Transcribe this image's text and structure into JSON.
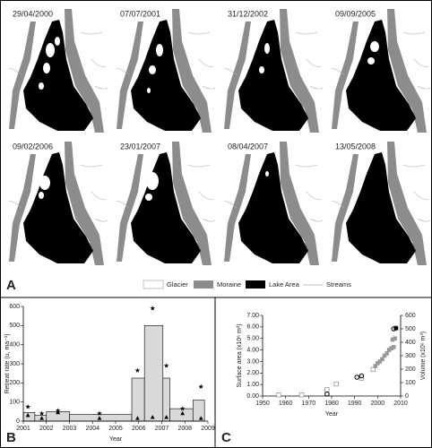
{
  "maps": {
    "dates": [
      "29/04/2000",
      "07/07/2001",
      "31/12/2002",
      "09/09/2005",
      "09/02/2006",
      "23/01/2007",
      "08/04/2007",
      "13/05/2008"
    ]
  },
  "legend": [
    "Glacier",
    "Moraine",
    "Lake Area",
    "Streams"
  ],
  "panel_labels": [
    "A",
    "B",
    "C"
  ],
  "chart_data": [
    {
      "type": "histogram",
      "xlabel": "Year",
      "ylabel": "Retreat rate (u, ma⁻¹)",
      "bins": [
        2001.0,
        2001.5,
        2002.0,
        2003.0,
        2005.7,
        2006.25,
        2007.05,
        2007.35,
        2008.35,
        2008.85
      ],
      "values": [
        45,
        30,
        50,
        35,
        225,
        500,
        225,
        65,
        110
      ],
      "color": "#d9d9d9",
      "series": [
        {
          "marker": "star",
          "color": "#000000",
          "x": [
            2001.2,
            2001.8,
            2002.5,
            2004.3,
            2005.95,
            2006.6,
            2007.2,
            2007.9,
            2008.7
          ],
          "values": [
            75,
            40,
            55,
            40,
            265,
            590,
            290,
            65,
            180
          ]
        },
        {
          "marker": "triangle",
          "color": "#000000",
          "x": [
            2001.2,
            2001.8,
            2002.5,
            2004.3,
            2005.95,
            2006.6,
            2007.2,
            2007.9,
            2008.7
          ],
          "values": [
            30,
            15,
            45,
            15,
            15,
            20,
            20,
            40,
            15
          ]
        }
      ],
      "xlim": [
        2001,
        2009
      ],
      "xticks": [
        2001,
        2002,
        2003,
        2004,
        2005,
        2006,
        2007,
        2008,
        2009
      ],
      "ylim": [
        0,
        600
      ],
      "yticks": [
        0,
        100,
        200,
        300,
        400,
        500,
        600
      ]
    },
    {
      "type": "scatter",
      "xlabel": "Year",
      "ylabel": "Surface area (x10⁶ m²)",
      "y2label": "Volume (x10⁶ m³)",
      "series": [
        {
          "marker": "square-open",
          "color": "#999999",
          "x": [
            1957,
            1967,
            1978,
            1982,
            1993,
            1998,
            2008
          ],
          "values": [
            0.1,
            0.1,
            0.55,
            1.05,
            1.55,
            2.3,
            5.9
          ]
        },
        {
          "marker": "square",
          "color": "#999999",
          "x": [
            1999,
            2000,
            2001,
            2002,
            2003,
            2004,
            2005,
            2006,
            2007,
            2006.5,
            2007.5
          ],
          "values": [
            2.6,
            2.85,
            3.0,
            3.2,
            3.5,
            3.7,
            4.0,
            4.15,
            4.25,
            4.9,
            5.0
          ]
        },
        {
          "marker": "circle-open",
          "color": "#000000",
          "axis": "y2",
          "x": [
            1978,
            1991,
            1993,
            2007
          ],
          "values": [
            15,
            140,
            150,
            500
          ]
        },
        {
          "marker": "circle",
          "color": "#000000",
          "axis": "y2",
          "x": [
            2008
          ],
          "values": [
            505
          ]
        }
      ],
      "xlim": [
        1950,
        2010
      ],
      "xticks": [
        1950,
        1960,
        1970,
        1980,
        1990,
        2000,
        2010
      ],
      "ylim": [
        0,
        7
      ],
      "yticks": [
        {
          "value": 0,
          "label": "0.00"
        },
        {
          "value": 1,
          "label": "1.00"
        },
        {
          "value": 2,
          "label": "2.00"
        },
        {
          "value": 3,
          "label": "3.00"
        },
        {
          "value": 4,
          "label": "4.00"
        },
        {
          "value": 5,
          "label": "5.00"
        },
        {
          "value": 6,
          "label": "6.00"
        },
        {
          "value": 7,
          "label": "7.00"
        }
      ],
      "y2lim": [
        0,
        600
      ],
      "y2ticks": [
        0,
        100,
        200,
        300,
        400,
        500,
        600
      ]
    }
  ]
}
